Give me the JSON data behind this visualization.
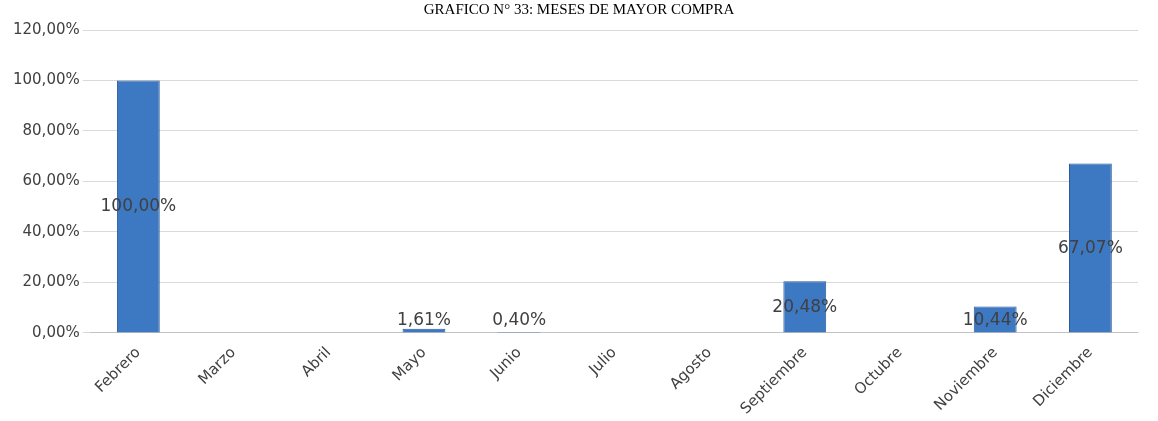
{
  "chart_data": {
    "type": "bar",
    "title": "GRAFICO N° 33: MESES DE MAYOR COMPRA",
    "categories": [
      "Febrero",
      "Marzo",
      "Abril",
      "Mayo",
      "Junio",
      "Julio",
      "Agosto",
      "Septiembre",
      "Octubre",
      "Noviembre",
      "Diciembre"
    ],
    "values": [
      100,
      null,
      null,
      1.61,
      0.4,
      null,
      null,
      20.48,
      null,
      10.44,
      67.07
    ],
    "value_labels": [
      "100,00%",
      null,
      null,
      "1,61%",
      "0,40%",
      null,
      null,
      "20,48%",
      null,
      "10,44%",
      "67,07%"
    ],
    "color": "#3d78c2",
    "ylim": [
      0,
      120
    ],
    "yticks": [
      {
        "value": 0,
        "label": "0,00%"
      },
      {
        "value": 20,
        "label": "20,00%"
      },
      {
        "value": 40,
        "label": "40,00%"
      },
      {
        "value": 60,
        "label": "60,00%"
      },
      {
        "value": 80,
        "label": "80,00%"
      },
      {
        "value": 100,
        "label": "100,00%"
      },
      {
        "value": 120,
        "label": "120,00%"
      }
    ],
    "grid": "y"
  }
}
